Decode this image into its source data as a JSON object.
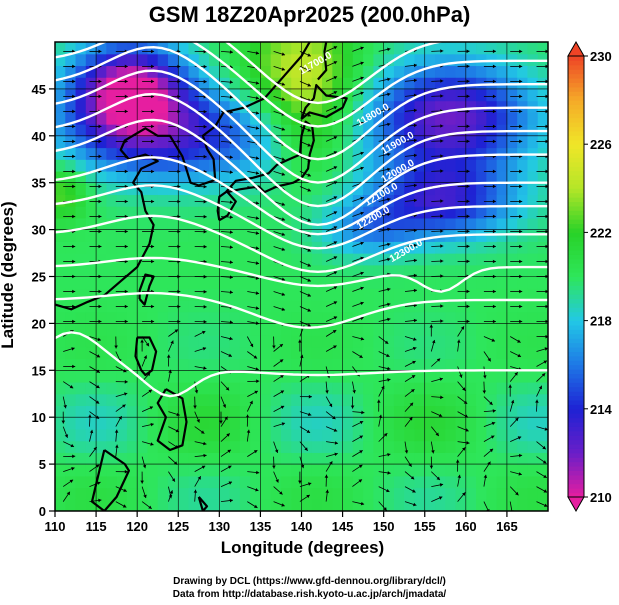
{
  "title": "GSM 18Z20Apr2025 (200.0hPa)",
  "x_axis": {
    "label": "Longitude (degrees)",
    "range": [
      110,
      170
    ],
    "ticks": [
      "110",
      "115",
      "120",
      "125",
      "130",
      "135",
      "140",
      "145",
      "150",
      "155",
      "160",
      "165"
    ],
    "tick_values": [
      110,
      115,
      120,
      125,
      130,
      135,
      140,
      145,
      150,
      155,
      160,
      165
    ]
  },
  "y_axis": {
    "label": "Latitude (degrees)",
    "range": [
      0,
      50
    ],
    "ticks": [
      "0",
      "5",
      "10",
      "15",
      "20",
      "25",
      "30",
      "35",
      "40",
      "45"
    ],
    "tick_values": [
      0,
      5,
      10,
      15,
      20,
      25,
      30,
      35,
      40,
      45
    ]
  },
  "colorbar": {
    "ticks": [
      "210",
      "214",
      "218",
      "222",
      "226",
      "230"
    ],
    "tick_values": [
      210,
      214,
      218,
      222,
      226,
      230
    ],
    "range": [
      210,
      230
    ],
    "colors": [
      "#e61ea0",
      "#6a1ec8",
      "#1e22d4",
      "#1e78e6",
      "#22c8e6",
      "#2ee65a",
      "#28d228",
      "#b4e628",
      "#f0e628",
      "#f5aa28",
      "#ee4426"
    ]
  },
  "contours": {
    "labels": [
      "11700.0",
      "11800.0",
      "11900.0",
      "12000.0",
      "12100.0",
      "12200.0",
      "12300.0"
    ],
    "color": "#ffffff"
  },
  "credits": {
    "line1": "Drawing by DCL (https://www.gfd-dennou.org/library/dcl/)",
    "line2": "Data from http://database.rish.kyoto-u.ac.jp/arch/jmadata/"
  }
}
